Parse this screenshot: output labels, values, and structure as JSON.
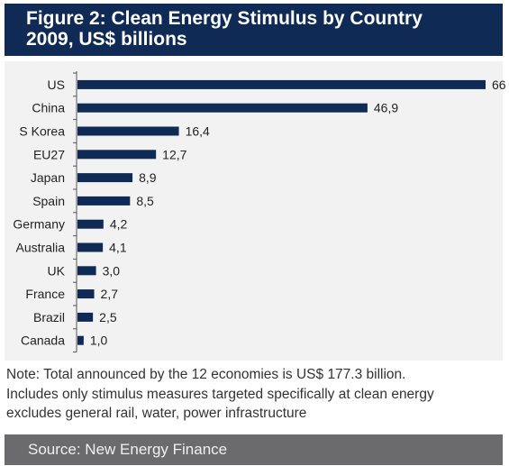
{
  "header": {
    "title_line1": "Figure 2: Clean Energy Stimulus by Country",
    "title_line2": "2009, US$ billions"
  },
  "chart_data": {
    "type": "bar",
    "orientation": "horizontal",
    "categories": [
      "US",
      "China",
      "S Korea",
      "EU27",
      "Japan",
      "Spain",
      "Germany",
      "Australia",
      "UK",
      "France",
      "Brazil",
      "Canada"
    ],
    "values": [
      66,
      46.9,
      16.4,
      12.7,
      8.9,
      8.5,
      4.2,
      4.1,
      3.0,
      2.7,
      2.5,
      1.0
    ],
    "value_labels": [
      "66",
      "46,9",
      "16,4",
      "12,7",
      "8,9",
      "8,5",
      "4,2",
      "4,1",
      "3,0",
      "2,7",
      "2,5",
      "1,0"
    ],
    "xlim": [
      0,
      66
    ],
    "bar_color": "#0f2a55",
    "grid": false
  },
  "note": {
    "line1": "Note: Total announced by the 12 economies is US$ 177.3 billion.",
    "line2": "Includes only stimulus measures targeted specifically at clean energy",
    "line3": "excludes general rail, water, power infrastructure"
  },
  "source": {
    "text": "Source: New Energy Finance"
  },
  "colors": {
    "header_bg": "#0f2a55",
    "panel_bg": "#f2f2f3",
    "source_bg": "#6b6b6e"
  }
}
